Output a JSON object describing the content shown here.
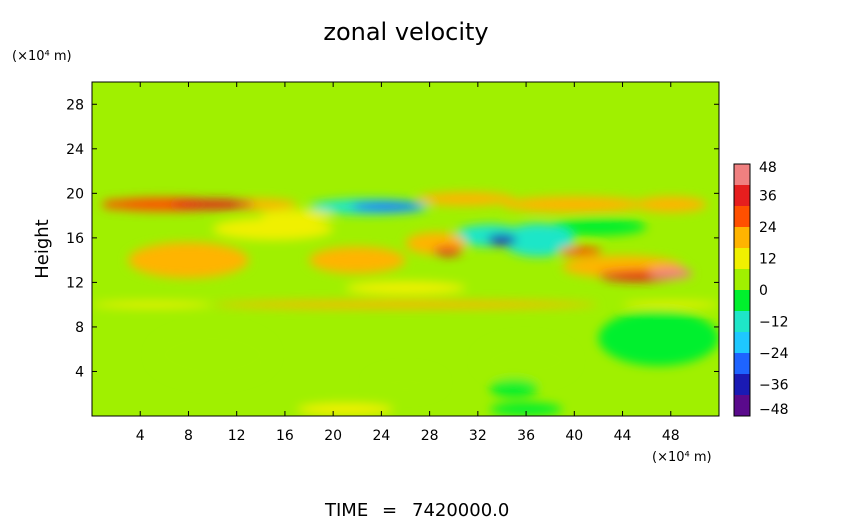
{
  "chart_data": {
    "type": "heatmap",
    "title": "zonal velocity",
    "xlabel": "",
    "ylabel": "Height",
    "x_units": "(×10⁴ m)",
    "y_units": "(×10⁴ m)",
    "xlim": [
      0,
      52
    ],
    "ylim": [
      0,
      30
    ],
    "x_ticks": [
      4,
      8,
      12,
      16,
      20,
      24,
      28,
      32,
      36,
      40,
      44,
      48
    ],
    "y_ticks": [
      4,
      8,
      12,
      16,
      20,
      24,
      28
    ],
    "colorbar": {
      "range": [
        -48,
        48
      ],
      "ticks": [
        48,
        36,
        24,
        12,
        0,
        -12,
        -24,
        -36,
        -48
      ],
      "colors": [
        "#5a0a8c",
        "#1a1ab4",
        "#1e64ff",
        "#1ec8ff",
        "#1ee6c8",
        "#00f02d",
        "#a0f000",
        "#f0f000",
        "#ffb400",
        "#ff5000",
        "#e61e1e",
        "#f08080"
      ]
    },
    "background_value": 0,
    "features": [
      {
        "x": 6,
        "y": 19,
        "rx": 5,
        "ry": 0.6,
        "value": 24
      },
      {
        "x": 10,
        "y": 19,
        "rx": 3.5,
        "ry": 0.45,
        "value": 38
      },
      {
        "x": 2,
        "y": 19,
        "rx": 1.2,
        "ry": 0.4,
        "value": 30
      },
      {
        "x": 14,
        "y": 19,
        "rx": 3,
        "ry": 0.5,
        "value": 20
      },
      {
        "x": 23,
        "y": 18.8,
        "rx": 5,
        "ry": 0.7,
        "value": -12
      },
      {
        "x": 24.5,
        "y": 18.8,
        "rx": 3,
        "ry": 0.4,
        "value": -26
      },
      {
        "x": 31,
        "y": 19.5,
        "rx": 4,
        "ry": 0.6,
        "value": 16
      },
      {
        "x": 40,
        "y": 19,
        "rx": 6,
        "ry": 0.7,
        "value": 18
      },
      {
        "x": 48,
        "y": 19,
        "rx": 3,
        "ry": 0.7,
        "value": 22
      },
      {
        "x": 29.5,
        "y": 14.8,
        "rx": 1.2,
        "ry": 0.4,
        "value": 38
      },
      {
        "x": 28.5,
        "y": 15.5,
        "rx": 2.5,
        "ry": 1.0,
        "value": 20
      },
      {
        "x": 34,
        "y": 15.8,
        "rx": 1.2,
        "ry": 0.5,
        "value": -38
      },
      {
        "x": 33,
        "y": 16.2,
        "rx": 3,
        "ry": 1.0,
        "value": -16
      },
      {
        "x": 37,
        "y": 15.8,
        "rx": 3,
        "ry": 1.5,
        "value": -10
      },
      {
        "x": 40.5,
        "y": 14.8,
        "rx": 1.8,
        "ry": 0.4,
        "value": 28
      },
      {
        "x": 45.5,
        "y": 12.6,
        "rx": 3.5,
        "ry": 0.5,
        "value": 34
      },
      {
        "x": 48,
        "y": 12.8,
        "rx": 1.8,
        "ry": 0.5,
        "value": 40
      },
      {
        "x": 44,
        "y": 13.4,
        "rx": 5,
        "ry": 1.0,
        "value": 20
      },
      {
        "x": 8,
        "y": 14,
        "rx": 5,
        "ry": 1.6,
        "value": 18
      },
      {
        "x": 22,
        "y": 14,
        "rx": 4,
        "ry": 1.2,
        "value": 16
      },
      {
        "x": 15,
        "y": 16.8,
        "rx": 5,
        "ry": 1.0,
        "value": 14
      },
      {
        "x": 26,
        "y": 11.5,
        "rx": 5,
        "ry": 0.6,
        "value": 14
      },
      {
        "x": 42,
        "y": 17,
        "rx": 4,
        "ry": 0.8,
        "value": -8
      },
      {
        "x": 26,
        "y": 10,
        "rx": 16,
        "ry": 0.35,
        "value": 20
      },
      {
        "x": 48,
        "y": 10,
        "rx": 4,
        "ry": 0.3,
        "value": 14
      },
      {
        "x": 5,
        "y": 10,
        "rx": 5,
        "ry": 0.3,
        "value": 10
      },
      {
        "x": 10,
        "y": 5.5,
        "rx": 5,
        "ry": 2.5,
        "value": 7
      },
      {
        "x": 47,
        "y": 7,
        "rx": 5,
        "ry": 2.5,
        "value": -8
      },
      {
        "x": 36,
        "y": 5,
        "rx": 4,
        "ry": 2,
        "value": 6
      },
      {
        "x": 26,
        "y": 3,
        "rx": 3,
        "ry": 1.2,
        "value": 5
      },
      {
        "x": 21,
        "y": 0.6,
        "rx": 4,
        "ry": 0.6,
        "value": 9
      },
      {
        "x": 36,
        "y": 0.6,
        "rx": 3,
        "ry": 0.6,
        "value": -8
      },
      {
        "x": 35,
        "y": 2.5,
        "rx": 2,
        "ry": 0.8,
        "value": -6
      },
      {
        "x": 17,
        "y": 18,
        "rx": 3,
        "ry": 0.5,
        "value": 10
      }
    ]
  },
  "footer": {
    "time_label": "TIME",
    "equals": "=",
    "time_value": "7420000.0"
  }
}
